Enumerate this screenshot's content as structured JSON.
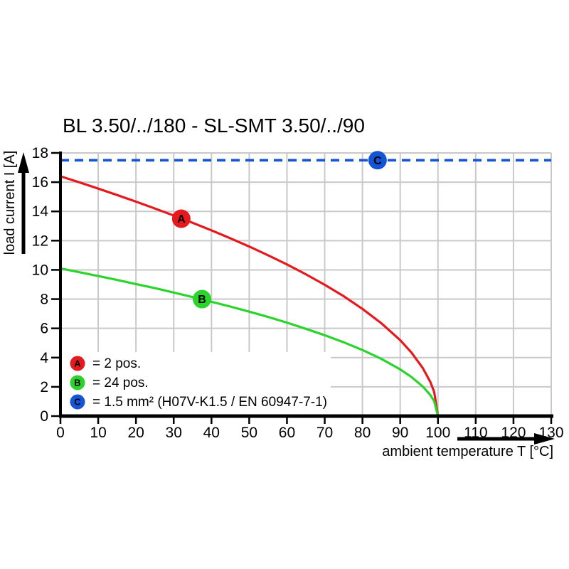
{
  "chart_data": {
    "type": "line",
    "title": "BL 3.50/../180 - SL-SMT 3.50/../90",
    "xlabel": "ambient temperature T [°C]",
    "ylabel": "load current I [A]",
    "xlim": [
      0,
      130
    ],
    "ylim": [
      0,
      18
    ],
    "xticks": [
      0,
      10,
      20,
      30,
      40,
      50,
      60,
      70,
      80,
      90,
      100,
      110,
      120,
      130
    ],
    "yticks": [
      0,
      2,
      4,
      6,
      8,
      10,
      12,
      14,
      16,
      18
    ],
    "grid": true,
    "grid_color": "#c9c9c9",
    "axis_color": "#000000",
    "background_color": "#ffffff",
    "legend_position": "bottom-left",
    "series": [
      {
        "id": "A",
        "name": "2 pos.",
        "color": "#e51a1e",
        "style": "solid",
        "points": [
          [
            0,
            16.4
          ],
          [
            5,
            15.99
          ],
          [
            10,
            15.56
          ],
          [
            15,
            15.12
          ],
          [
            20,
            14.67
          ],
          [
            25,
            14.2
          ],
          [
            30,
            13.72
          ],
          [
            35,
            13.22
          ],
          [
            40,
            12.7
          ],
          [
            45,
            12.16
          ],
          [
            50,
            11.6
          ],
          [
            55,
            11.0
          ],
          [
            60,
            10.37
          ],
          [
            65,
            9.7
          ],
          [
            70,
            8.98
          ],
          [
            75,
            8.2
          ],
          [
            80,
            7.33
          ],
          [
            85,
            6.35
          ],
          [
            90,
            5.19
          ],
          [
            93,
            4.34
          ],
          [
            96,
            3.28
          ],
          [
            98,
            2.32
          ],
          [
            99,
            1.64
          ],
          [
            100,
            0
          ]
        ]
      },
      {
        "id": "B",
        "name": "24 pos.",
        "color": "#2bd42b",
        "style": "solid",
        "points": [
          [
            0,
            10.1
          ],
          [
            5,
            9.84
          ],
          [
            10,
            9.58
          ],
          [
            15,
            9.31
          ],
          [
            20,
            9.03
          ],
          [
            25,
            8.75
          ],
          [
            30,
            8.45
          ],
          [
            35,
            8.14
          ],
          [
            40,
            7.82
          ],
          [
            45,
            7.49
          ],
          [
            50,
            7.14
          ],
          [
            55,
            6.78
          ],
          [
            60,
            6.39
          ],
          [
            65,
            5.97
          ],
          [
            70,
            5.53
          ],
          [
            75,
            5.05
          ],
          [
            80,
            4.52
          ],
          [
            85,
            3.91
          ],
          [
            90,
            3.19
          ],
          [
            93,
            2.67
          ],
          [
            96,
            2.02
          ],
          [
            98,
            1.43
          ],
          [
            99,
            1.01
          ],
          [
            100,
            0
          ]
        ]
      },
      {
        "id": "C",
        "name": "1.5 mm² (H07V-K1.5 / EN 60947-7-1)",
        "color": "#1454d7",
        "style": "dashed",
        "points": [
          [
            0,
            17.5
          ],
          [
            130,
            17.5
          ]
        ]
      }
    ],
    "markers": [
      {
        "label": "A",
        "x": 32,
        "y": 13.5,
        "color": "#e51a1e"
      },
      {
        "label": "B",
        "x": 37.5,
        "y": 8.0,
        "color": "#2bd42b"
      },
      {
        "label": "C",
        "x": 84,
        "y": 17.5,
        "color": "#1454d7"
      }
    ],
    "legend": [
      {
        "label": "A",
        "color": "#e51a1e",
        "text": "= 2 pos."
      },
      {
        "label": "B",
        "color": "#2bd42b",
        "text": "= 24 pos."
      },
      {
        "label": "C",
        "color": "#1454d7",
        "text": "= 1.5 mm² (H07V-K1.5 / EN 60947-7-1)"
      }
    ]
  }
}
